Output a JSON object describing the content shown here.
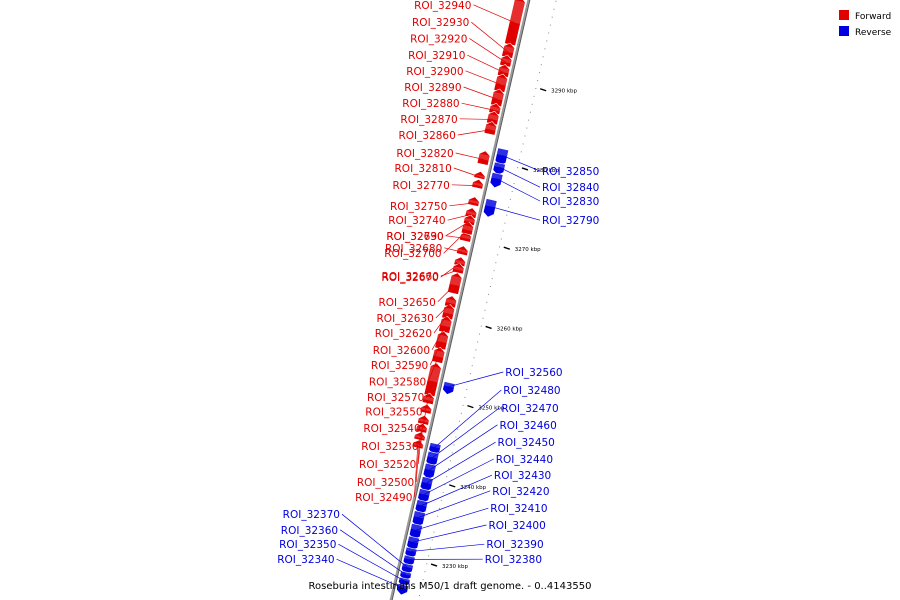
{
  "title": "Roseburia intestinalis M50/1 draft genome. - 0..4143550",
  "colors": {
    "forward": "#e00000",
    "reverse": "#0000e0",
    "axis": "#9a9a9a"
  },
  "legend": [
    {
      "key": "forward",
      "label": "Forward"
    },
    {
      "key": "reverse",
      "label": "Reverse"
    }
  ],
  "ticks": [
    {
      "label": "3290 kbp",
      "kbp": 3290
    },
    {
      "label": "3280 kbp",
      "kbp": 3280
    },
    {
      "label": "3270 kbp",
      "kbp": 3270
    },
    {
      "label": "3260 kbp",
      "kbp": 3260
    },
    {
      "label": "3250 kbp",
      "kbp": 3250
    },
    {
      "label": "3240 kbp",
      "kbp": 3240
    },
    {
      "label": "3230 kbp",
      "kbp": 3230
    }
  ],
  "forward_features": [
    {
      "name": "ROI_32940",
      "start": 3294.5,
      "end": 3300,
      "label_y": 0.008
    },
    {
      "name": "ROI_32930",
      "start": 3292.9,
      "end": 3294.2,
      "label_y": 0.037
    },
    {
      "name": "ROI_32920",
      "start": 3291.8,
      "end": 3292.7,
      "label_y": 0.064
    },
    {
      "name": "ROI_32910",
      "start": 3290.5,
      "end": 3291.5,
      "label_y": 0.092
    },
    {
      "name": "ROI_32900",
      "start": 3288.6,
      "end": 3290.3,
      "label_y": 0.118
    },
    {
      "name": "ROI_32890",
      "start": 3286.8,
      "end": 3288.4,
      "label_y": 0.145
    },
    {
      "name": "ROI_32880",
      "start": 3285.8,
      "end": 3286.6,
      "label_y": 0.172
    },
    {
      "name": "ROI_32870",
      "start": 3284.5,
      "end": 3285.6,
      "label_y": 0.198
    },
    {
      "name": "ROI_32860",
      "start": 3283.2,
      "end": 3284.3,
      "label_y": 0.225
    },
    {
      "name": "ROI_32820",
      "start": 3279.4,
      "end": 3280.6,
      "label_y": 0.255
    },
    {
      "name": "ROI_32810",
      "start": 3277.6,
      "end": 3278.0,
      "label_y": 0.28
    },
    {
      "name": "ROI_32770",
      "start": 3276.4,
      "end": 3277.0,
      "label_y": 0.308
    },
    {
      "name": "ROI_32750",
      "start": 3274.2,
      "end": 3274.8,
      "label_y": 0.343
    },
    {
      "name": "ROI_32740",
      "start": 3272.7,
      "end": 3273.4,
      "label_y": 0.367
    },
    {
      "name": "ROI_32730",
      "start": 3271.8,
      "end": 3272.5,
      "label_y": 0.393
    },
    {
      "name": "ROI_32690",
      "start": 3269.7,
      "end": 3270.4,
      "label_y": 0.393
    },
    {
      "name": "ROI_32680",
      "start": 3268.0,
      "end": 3268.6,
      "label_y": 0.413
    },
    {
      "name": "ROI_32700",
      "start": 3270.6,
      "end": 3271.6,
      "label_y": 0.422
    },
    {
      "name": "ROI_32670",
      "start": 3266.6,
      "end": 3267.2,
      "label_y": 0.462
    },
    {
      "name": "ROI_32660",
      "start": 3265.7,
      "end": 3266.4,
      "label_y": 0.46
    },
    {
      "name": "ROI_32650",
      "start": 3263.1,
      "end": 3265.2,
      "label_y": 0.503
    },
    {
      "name": "ROI_32630",
      "start": 3261.4,
      "end": 3262.3,
      "label_y": 0.53
    },
    {
      "name": "ROI_32620",
      "start": 3259.9,
      "end": 3261.2,
      "label_y": 0.555
    },
    {
      "name": "ROI_32600",
      "start": 3258.2,
      "end": 3259.7,
      "label_y": 0.583
    },
    {
      "name": "ROI_32590",
      "start": 3256.1,
      "end": 3257.8,
      "label_y": 0.608
    },
    {
      "name": "ROI_32580",
      "start": 3254.4,
      "end": 3255.8,
      "label_y": 0.636
    },
    {
      "name": "ROI_32570",
      "start": 3250.2,
      "end": 3253.8,
      "label_y": 0.662
    },
    {
      "name": "ROI_32550",
      "start": 3249.2,
      "end": 3250.0,
      "label_y": 0.686
    },
    {
      "name": "ROI_32540",
      "start": 3248.0,
      "end": 3248.6,
      "label_y": 0.713
    },
    {
      "name": "ROI_32530",
      "start": 3246.6,
      "end": 3247.2,
      "label_y": 0.743
    },
    {
      "name": "ROI_32520",
      "start": 3245.6,
      "end": 3246.2,
      "label_y": 0.773
    },
    {
      "name": "ROI_32500",
      "start": 3244.6,
      "end": 3245.1,
      "label_y": 0.803
    },
    {
      "name": "ROI_32490",
      "start": 3243.6,
      "end": 3244.1,
      "label_y": 0.828
    }
  ],
  "reverse_features": [
    {
      "name": "ROI_32850",
      "start": 3280.2,
      "end": 3281.8,
      "label_y": 0.285
    },
    {
      "name": "ROI_32840",
      "start": 3279.0,
      "end": 3280.0,
      "label_y": 0.312
    },
    {
      "name": "ROI_32830",
      "start": 3277.4,
      "end": 3278.7,
      "label_y": 0.335
    },
    {
      "name": "ROI_32790",
      "start": 3273.7,
      "end": 3275.4,
      "label_y": 0.367
    },
    {
      "name": "ROI_32560",
      "start": 3251.3,
      "end": 3252.3,
      "label_y": 0.62
    },
    {
      "name": "ROI_32480",
      "start": 3243.7,
      "end": 3244.6,
      "label_y": 0.65
    },
    {
      "name": "ROI_32470",
      "start": 3242.2,
      "end": 3243.5,
      "label_y": 0.68
    },
    {
      "name": "ROI_32460",
      "start": 3240.6,
      "end": 3242.0,
      "label_y": 0.708
    },
    {
      "name": "ROI_32450",
      "start": 3239.0,
      "end": 3240.3,
      "label_y": 0.737
    },
    {
      "name": "ROI_32440",
      "start": 3237.6,
      "end": 3238.8,
      "label_y": 0.765
    },
    {
      "name": "ROI_32430",
      "start": 3236.2,
      "end": 3237.4,
      "label_y": 0.792
    },
    {
      "name": "ROI_32420",
      "start": 3234.6,
      "end": 3236.0,
      "label_y": 0.818
    },
    {
      "name": "ROI_32410",
      "start": 3233.0,
      "end": 3234.4,
      "label_y": 0.847
    },
    {
      "name": "ROI_32400",
      "start": 3231.6,
      "end": 3232.8,
      "label_y": 0.875
    },
    {
      "name": "ROI_32390",
      "start": 3230.6,
      "end": 3231.4,
      "label_y": 0.907
    },
    {
      "name": "ROI_32380",
      "start": 3229.6,
      "end": 3230.4,
      "label_y": 0.932
    },
    {
      "name": "ROI_32370",
      "start": 3228.6,
      "end": 3229.4,
      "label_y": 0.857
    },
    {
      "name": "ROI_32360",
      "start": 3227.8,
      "end": 3228.4,
      "label_y": 0.883
    },
    {
      "name": "ROI_32350",
      "start": 3227.0,
      "end": 3227.6,
      "label_y": 0.907
    },
    {
      "name": "ROI_32340",
      "start": 3226.0,
      "end": 3226.8,
      "label_y": 0.932
    }
  ]
}
